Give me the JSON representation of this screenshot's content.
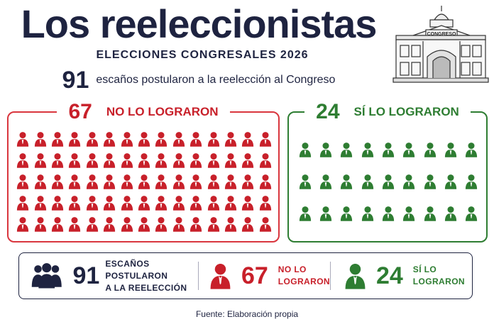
{
  "header": {
    "title": "Los reeleccionistas",
    "subtitle": "ELECCIONES CONGRESALES 2026",
    "building_sign": "CONGRESO"
  },
  "total": {
    "value": "91",
    "text": "escaños postularon a la reelección al Congreso"
  },
  "failed": {
    "value": "67",
    "label": "NO LO LOGRARON",
    "count": 67,
    "color": "#c8202a"
  },
  "succeeded": {
    "value": "24",
    "label": "SÍ LO LOGRARON",
    "count": 24,
    "color": "#2e7d32"
  },
  "summary": {
    "total_value": "91",
    "total_label_1": "ESCAÑOS POSTULARON",
    "total_label_2": "A LA REELECCIÓN",
    "failed_value": "67",
    "failed_label_1": "NO LO",
    "failed_label_2": "LOGRARON",
    "succeeded_value": "24",
    "succeeded_label_1": "SÍ LO",
    "succeeded_label_2": "LOGRARON"
  },
  "icons": {
    "person": "person-icon",
    "group": "group-icon",
    "building": "congress-building-icon"
  },
  "source": "Fuente: Elaboración propia"
}
